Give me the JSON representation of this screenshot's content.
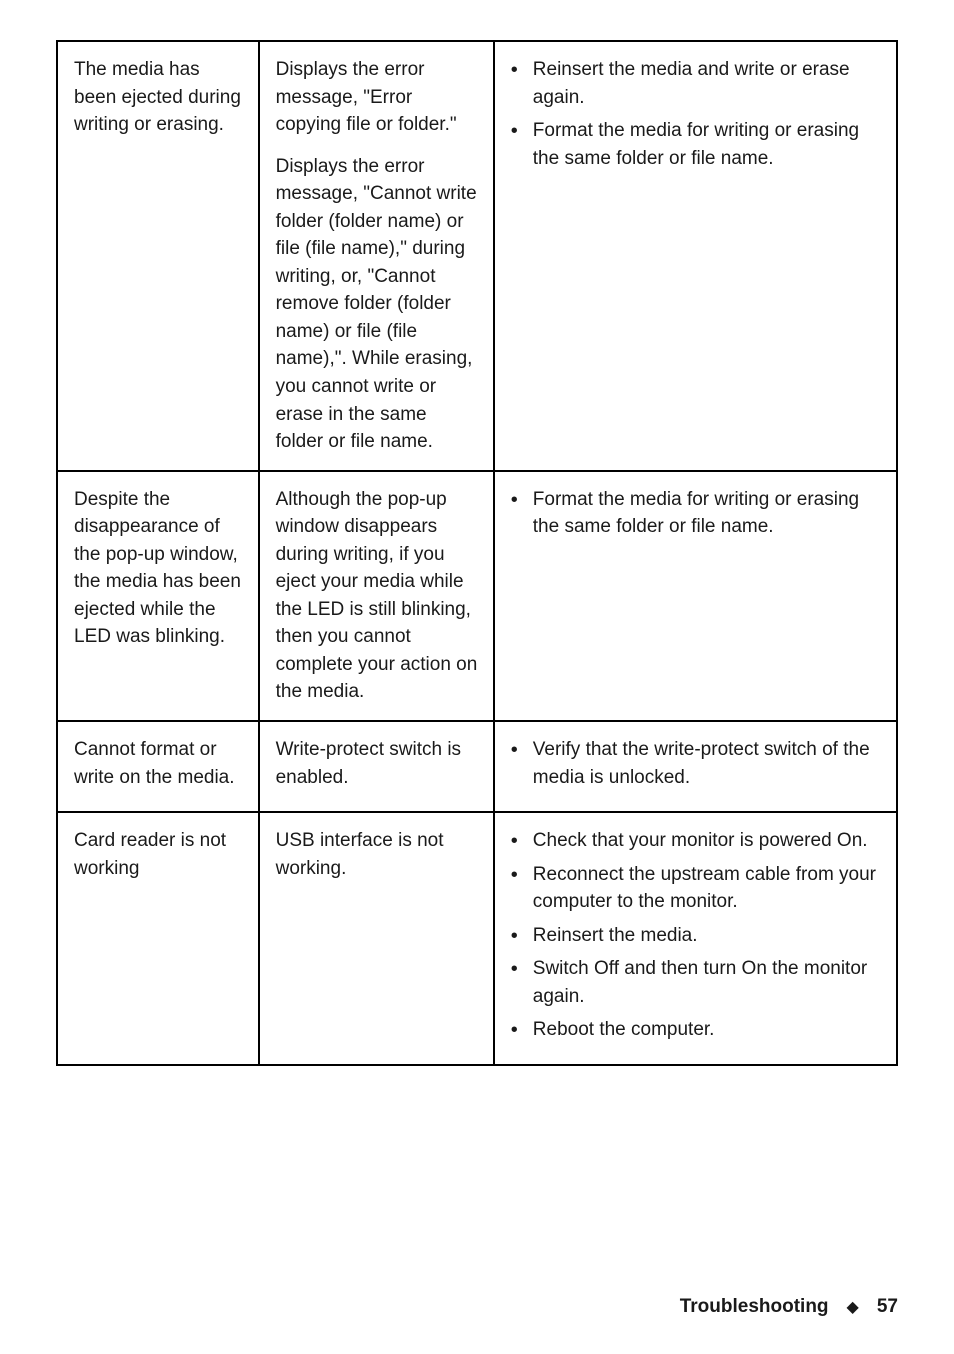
{
  "table": {
    "rows": [
      {
        "col1": "The media has been ejected during writing or erasing.",
        "col2_paras": [
          "Displays the error message, \"Error copying file or folder.\"",
          "Displays the error message, \"Cannot write folder (folder name) or file (file name),\" during writing, or, \"Cannot remove folder (folder name) or file (file name),\". While erasing, you cannot write or erase in the same folder or file name."
        ],
        "col3_bullets": [
          "Reinsert the media and write or erase again.",
          "Format the media for writing or erasing the same folder or file name."
        ]
      },
      {
        "col1": "Despite the disappearance of the pop-up window, the media has been ejected while the LED was blinking.",
        "col2_paras": [
          "Although the pop-up window disappears during writing, if you eject your media while the LED is still blinking, then you cannot complete your action on the media."
        ],
        "col3_bullets": [
          "Format the media for writing or erasing the same folder or file name."
        ]
      },
      {
        "col1": "Cannot format or write on the media.",
        "col2_paras": [
          "Write-protect switch is enabled."
        ],
        "col3_bullets": [
          "Verify that the write-protect switch of the media is unlocked."
        ]
      },
      {
        "col1": "Card reader is not working",
        "col2_paras": [
          "USB interface is not working."
        ],
        "col3_bullets": [
          "Check that your monitor is powered On.",
          "Reconnect the upstream cable from your computer to the monitor.",
          "Reinsert the media.",
          "Switch Off and then turn On the monitor again.",
          "Reboot the computer."
        ]
      }
    ]
  },
  "footer": {
    "section": "Troubleshooting",
    "page": "57"
  }
}
